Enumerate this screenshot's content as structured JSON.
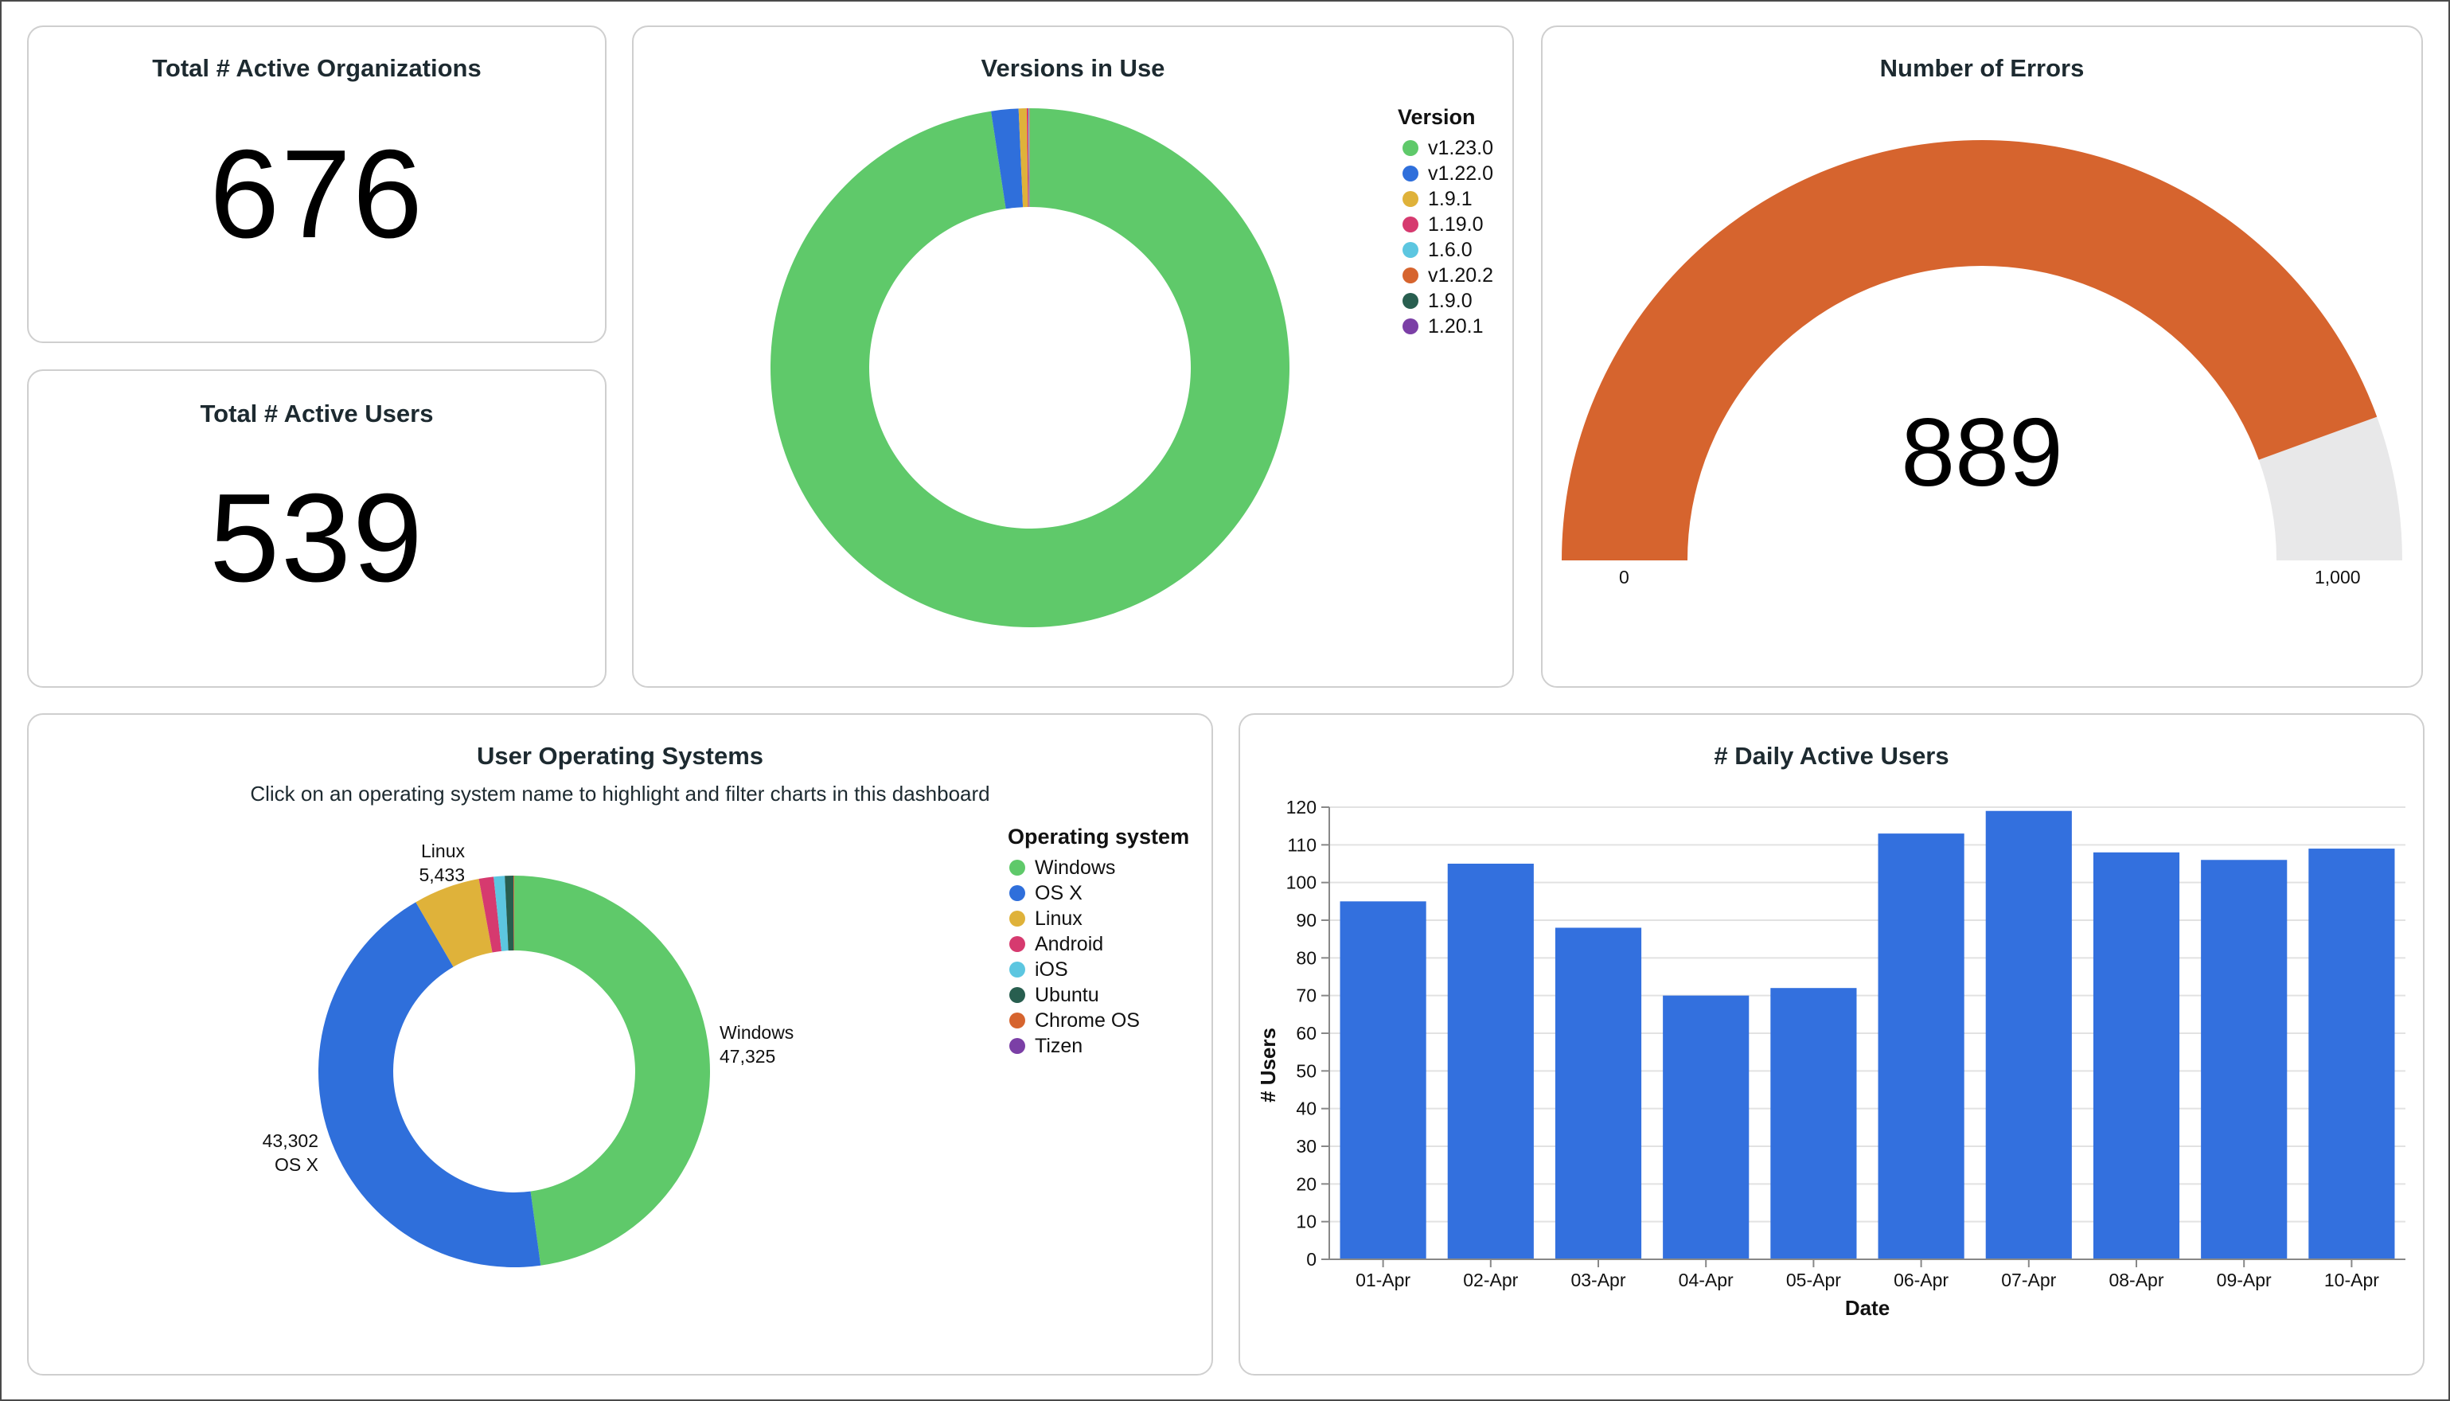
{
  "kpis": {
    "organizations": {
      "title": "Total # Active Organizations",
      "value": "676"
    },
    "users": {
      "title": "Total # Active Users",
      "value": "539"
    }
  },
  "versions": {
    "title": "Versions in Use",
    "legend_title": "Version",
    "chart_data": {
      "type": "donut",
      "series": [
        {
          "name": "v1.23.0",
          "value": 97.6,
          "color": "#5fc96a"
        },
        {
          "name": "v1.22.0",
          "value": 1.7,
          "color": "#2f6fdb"
        },
        {
          "name": "1.9.1",
          "value": 0.5,
          "color": "#dfb23a"
        },
        {
          "name": "1.19.0",
          "value": 0.1,
          "color": "#d63a6f"
        },
        {
          "name": "1.6.0",
          "value": 0.05,
          "color": "#5cc6e0"
        },
        {
          "name": "v1.20.2",
          "value": 0.03,
          "color": "#d6642e"
        },
        {
          "name": "1.9.0",
          "value": 0.01,
          "color": "#285e4f"
        },
        {
          "name": "1.20.1",
          "value": 0.01,
          "color": "#7b3fa6"
        }
      ]
    }
  },
  "errors": {
    "title": "Number of  Errors",
    "value": "889",
    "chart_data": {
      "type": "gauge",
      "value": 889,
      "min": 0,
      "max": 1000,
      "min_label": "0",
      "max_label": "1,000",
      "fill_color": "#d6642e",
      "track_color": "#e8e8e9"
    }
  },
  "os": {
    "title": "User Operating Systems",
    "subtitle": "Click on an operating system name to highlight and filter charts in this dashboard",
    "legend_title": "Operating system",
    "labels": {
      "windows": {
        "name": "Windows",
        "value": "47,325"
      },
      "osx": {
        "name": "OS X",
        "value": "43,302"
      },
      "linux": {
        "name": "Linux",
        "value": "5,433"
      }
    },
    "chart_data": {
      "type": "donut",
      "series": [
        {
          "name": "Windows",
          "value": 47325,
          "color": "#5fc96a"
        },
        {
          "name": "OS X",
          "value": 43302,
          "color": "#2f6fdb"
        },
        {
          "name": "Linux",
          "value": 5433,
          "color": "#dfb23a"
        },
        {
          "name": "Android",
          "value": 1200,
          "color": "#d63a6f"
        },
        {
          "name": "iOS",
          "value": 900,
          "color": "#5cc6e0"
        },
        {
          "name": "Ubuntu",
          "value": 700,
          "color": "#285e4f"
        },
        {
          "name": "Chrome OS",
          "value": 40,
          "color": "#d6642e"
        },
        {
          "name": "Tizen",
          "value": 20,
          "color": "#7b3fa6"
        }
      ]
    }
  },
  "daily": {
    "title": "# Daily Active Users",
    "chart_data": {
      "type": "bar",
      "categories": [
        "01-Apr",
        "02-Apr",
        "03-Apr",
        "04-Apr",
        "05-Apr",
        "06-Apr",
        "07-Apr",
        "08-Apr",
        "09-Apr",
        "10-Apr"
      ],
      "values": [
        95,
        105,
        88,
        70,
        72,
        113,
        119,
        108,
        106,
        109
      ],
      "xlabel": "Date",
      "ylabel": "# Users",
      "ylim": [
        0,
        120
      ],
      "yticks": [
        0,
        10,
        20,
        30,
        40,
        50,
        60,
        70,
        80,
        90,
        100,
        110,
        120
      ],
      "bar_color": "#3370de",
      "grid": true
    }
  }
}
